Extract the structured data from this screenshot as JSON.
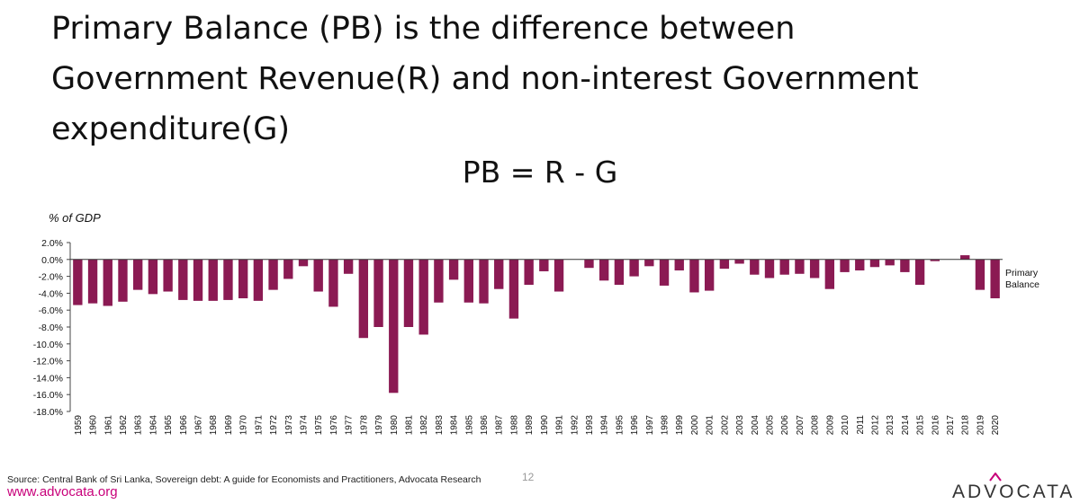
{
  "slide": {
    "title_lines": [
      "Primary Balance (PB) is the difference between",
      "Government Revenue(R) and non-interest Government",
      "expenditure(G)"
    ],
    "formula": "PB = R - G",
    "source": "Source: Central Bank of Sri Lanka, Sovereign debt: A guide for Economists and Practitioners, Advocata Research",
    "page_number": "12",
    "website": "www.advocata.org",
    "logo_text": "ADVOCATA"
  },
  "colors": {
    "bar": "#8b1a53",
    "website": "#c8007a",
    "logo_accent": "#c8007a"
  },
  "chart_data": {
    "type": "bar",
    "ylabel": "% of GDP",
    "ylim": [
      -18,
      2
    ],
    "ytick_values": [
      2,
      0,
      -2,
      -4,
      -6,
      -8,
      -10,
      -12,
      -14,
      -16,
      -18
    ],
    "ytick_labels": [
      "2.0%",
      "0.0%",
      "-2.0%",
      "-4.0%",
      "-6.0%",
      "-8.0%",
      "-10.0%",
      "-12.0%",
      "-14.0%",
      "-16.0%",
      "-18.0%"
    ],
    "grid": false,
    "legend_placement": "right",
    "categories": [
      "1959",
      "1960",
      "1961",
      "1962",
      "1963",
      "1964",
      "1965",
      "1966",
      "1967",
      "1968",
      "1969",
      "1970",
      "1971",
      "1972",
      "1973",
      "1974",
      "1975",
      "1976",
      "1977",
      "1978",
      "1979",
      "1980",
      "1981",
      "1982",
      "1983",
      "1984",
      "1985",
      "1986",
      "1987",
      "1988",
      "1989",
      "1990",
      "1991",
      "1992",
      "1993",
      "1994",
      "1995",
      "1996",
      "1997",
      "1998",
      "1999",
      "2000",
      "2001",
      "2002",
      "2003",
      "2004",
      "2005",
      "2006",
      "2007",
      "2008",
      "2009",
      "2010",
      "2011",
      "2012",
      "2013",
      "2014",
      "2015",
      "2016",
      "2017",
      "2018",
      "2019",
      "2020"
    ],
    "series": [
      {
        "name": "Primary Balance",
        "values": [
          -5.4,
          -5.2,
          -5.5,
          -5.0,
          -3.6,
          -4.1,
          -3.8,
          -4.8,
          -4.9,
          -4.9,
          -4.8,
          -4.6,
          -4.9,
          -3.6,
          -2.3,
          -0.8,
          -3.8,
          -5.6,
          -1.7,
          -9.3,
          -8.0,
          -15.8,
          -8.0,
          -8.9,
          -5.1,
          -2.4,
          -5.1,
          -5.2,
          -3.5,
          -7.0,
          -3.0,
          -1.4,
          -3.8,
          0.0,
          -1.0,
          -2.5,
          -3.0,
          -2.0,
          -0.8,
          -3.1,
          -1.3,
          -3.9,
          -3.7,
          -1.1,
          -0.5,
          -1.8,
          -2.2,
          -1.8,
          -1.7,
          -2.2,
          -3.5,
          -1.5,
          -1.3,
          -0.9,
          -0.7,
          -1.5,
          -3.0,
          -0.2,
          0.0,
          0.5,
          -3.6,
          -4.6
        ]
      }
    ]
  }
}
